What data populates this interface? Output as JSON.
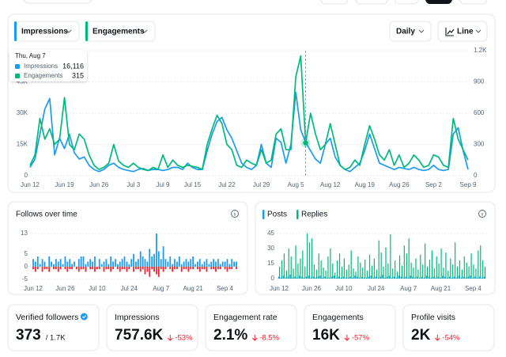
{
  "main_chart": {
    "type": "line",
    "categories": [
      "Jun 12",
      null,
      null,
      null,
      null,
      null,
      null,
      "Jun 19",
      null,
      null,
      null,
      null,
      null,
      null,
      "Jun 26",
      null,
      null,
      null,
      null,
      null,
      null,
      "Jul 3",
      null,
      null,
      null,
      null,
      null,
      "Jul 9",
      null,
      null,
      null,
      null,
      null,
      "Jul 15",
      null,
      null,
      null,
      null,
      null,
      null,
      "Jul 22",
      null,
      null,
      null,
      null,
      null,
      null,
      "Jul 29",
      null,
      null,
      null,
      null,
      null,
      null,
      "Aug 5",
      null,
      null,
      null,
      null,
      null,
      null,
      "Aug 12",
      null,
      null,
      null,
      null,
      null,
      null,
      "Aug 19",
      null,
      null,
      null,
      null,
      null,
      null,
      "Aug 26",
      null,
      null,
      null,
      null,
      null,
      null,
      "Sep 2",
      null,
      null,
      null,
      null,
      null,
      null,
      "Sep 9"
    ],
    "series": [
      {
        "name": "Impressions",
        "color": "#1d9bf0",
        "values": [
          4000,
          8000,
          20000,
          32000,
          37000,
          10000,
          18000,
          13000,
          20000,
          11000,
          8000,
          9000,
          5000,
          3000,
          2000,
          3000,
          5000,
          6000,
          4000,
          3000,
          2500,
          2000,
          3000,
          3500,
          2500,
          3000,
          3000,
          2500,
          3000,
          4000,
          4000,
          3000,
          6000,
          4000,
          3000,
          3000,
          12000,
          20000,
          26000,
          28000,
          22000,
          18000,
          12000,
          6000,
          4000,
          3000,
          5000,
          15000,
          6000,
          4000,
          18000,
          16000,
          6000,
          15000,
          40000,
          22000,
          16116,
          12000,
          8000,
          6000,
          15000,
          18000,
          9000,
          5000,
          3000,
          2000,
          4000,
          6000,
          12000,
          20000,
          13000,
          6000,
          5000,
          4000,
          3000,
          4000,
          3500,
          3000,
          4000,
          3000,
          2500,
          3000,
          5000,
          3000,
          2500,
          3000,
          20000,
          23000,
          12000,
          3000
        ]
      },
      {
        "name": "Engagements",
        "color": "#00ba7c",
        "axis": "y2",
        "values": [
          100,
          200,
          550,
          350,
          450,
          300,
          350,
          750,
          300,
          250,
          400,
          350,
          200,
          100,
          60,
          80,
          120,
          300,
          140,
          100,
          80,
          120,
          80,
          60,
          50,
          80,
          60,
          200,
          80,
          150,
          100,
          80,
          100,
          90,
          80,
          60,
          300,
          450,
          580,
          500,
          300,
          250,
          100,
          80,
          150,
          120,
          100,
          250,
          120,
          150,
          400,
          450,
          250,
          250,
          950,
          1150,
          315,
          600,
          400,
          250,
          300,
          500,
          300,
          100,
          60,
          80,
          150,
          100,
          300,
          480,
          350,
          200,
          150,
          250,
          100,
          200,
          80,
          120,
          200,
          150,
          80,
          100,
          200,
          180,
          100,
          80,
          550,
          350,
          250,
          150
        ]
      }
    ],
    "ylim": [
      0,
      60000
    ],
    "yticks": [
      0,
      {
        "value": 15000,
        "label": "15K"
      },
      {
        "value": 30000,
        "label": "30K"
      },
      {
        "value": 45000,
        "label": "45K"
      }
    ],
    "y2lim": [
      0,
      1200
    ],
    "y2ticks": [
      0,
      300,
      600,
      900,
      {
        "value": 1200,
        "label": "1.2K"
      }
    ],
    "grid": true,
    "tooltip": {
      "date": "Thu, Aug 7",
      "values": [
        "16,116",
        "315"
      ]
    }
  },
  "controls": {
    "interval": "Daily",
    "style": "Line"
  },
  "follows_chart": {
    "type": "bar",
    "title": "Follows over time",
    "categories": [
      "Jun 12",
      null,
      null,
      null,
      null,
      null,
      null,
      null,
      null,
      null,
      null,
      null,
      null,
      null,
      "Jun 26",
      null,
      null,
      null,
      null,
      null,
      null,
      null,
      null,
      null,
      null,
      null,
      null,
      null,
      "Jul 10",
      null,
      null,
      null,
      null,
      null,
      null,
      null,
      null,
      null,
      null,
      null,
      null,
      null,
      "Jul 24",
      null,
      null,
      null,
      null,
      null,
      null,
      null,
      null,
      null,
      null,
      null,
      null,
      null,
      "Aug 7",
      null,
      null,
      null,
      null,
      null,
      null,
      null,
      null,
      null,
      null,
      null,
      null,
      null,
      "Aug 21",
      null,
      null,
      null,
      null,
      null,
      null,
      null,
      null,
      null,
      null,
      null,
      null,
      null,
      "Sep 4",
      null,
      null,
      null,
      null,
      null
    ],
    "series": [
      {
        "color": "#1d9bf0",
        "values": [
          3,
          2,
          4,
          1,
          3,
          2,
          0,
          4,
          2,
          1,
          3,
          2,
          3,
          1,
          4,
          2,
          3,
          1,
          2,
          0,
          3,
          4,
          4,
          1,
          2,
          3,
          2,
          4,
          0,
          3,
          1,
          2,
          3,
          1,
          4,
          2,
          3,
          1,
          2,
          3,
          4,
          2,
          1,
          3,
          5,
          2,
          3,
          6,
          4,
          3,
          2,
          7,
          4,
          5,
          13,
          6,
          3,
          8,
          3,
          2,
          4,
          1,
          3,
          2,
          4,
          1,
          2,
          3,
          2,
          3,
          4,
          1,
          2,
          3,
          1,
          2,
          3,
          1,
          2,
          3,
          2,
          3,
          1,
          2,
          2,
          3,
          1,
          3,
          2,
          2
        ]
      },
      {
        "color": "#f4212e",
        "values": [
          -1,
          -2,
          -1,
          0,
          -2,
          -1,
          -1,
          -2,
          0,
          -1,
          -1,
          -2,
          -1,
          0,
          -1,
          -2,
          -1,
          -1,
          0,
          -1,
          -2,
          -1,
          -1,
          -2,
          0,
          -1,
          -1,
          -2,
          -1,
          -1,
          0,
          -2,
          -1,
          -1,
          -2,
          -1,
          0,
          -1,
          -2,
          -1,
          -1,
          -2,
          -1,
          0,
          -2,
          -1,
          -1,
          -2,
          -1,
          -3,
          -2,
          -4,
          -1,
          -2,
          -3,
          -4,
          -1,
          -2,
          -1,
          0,
          -1,
          -2,
          -1,
          -1,
          0,
          -2,
          -1,
          -1,
          -2,
          -1,
          -1,
          0,
          -1,
          -2,
          -1,
          -1,
          -2,
          0,
          -1,
          -1,
          -2,
          -1,
          -1,
          0,
          -1,
          -2,
          -1,
          -1,
          0,
          -1
        ]
      }
    ],
    "ylim": [
      -5,
      13
    ],
    "yticks": [
      -5,
      0,
      5,
      13
    ],
    "grid": true
  },
  "posts_chart": {
    "type": "bar",
    "categories": [
      "Jun 12",
      null,
      null,
      null,
      null,
      null,
      null,
      null,
      null,
      null,
      null,
      null,
      null,
      null,
      "Jun 26",
      null,
      null,
      null,
      null,
      null,
      null,
      null,
      null,
      null,
      null,
      null,
      null,
      null,
      "Jul 10",
      null,
      null,
      null,
      null,
      null,
      null,
      null,
      null,
      null,
      null,
      null,
      null,
      null,
      "Jul 24",
      null,
      null,
      null,
      null,
      null,
      null,
      null,
      null,
      null,
      null,
      null,
      null,
      null,
      "Aug 7",
      null,
      null,
      null,
      null,
      null,
      null,
      null,
      null,
      null,
      null,
      null,
      null,
      null,
      "Aug 21",
      null,
      null,
      null,
      null,
      null,
      null,
      null,
      null,
      null,
      null,
      null,
      null,
      null,
      "Sep 4",
      null,
      null,
      null,
      null,
      null
    ],
    "series": [
      {
        "name": "Posts",
        "color": "#1d9bf0",
        "values": [
          2,
          1,
          3,
          1,
          2,
          4,
          1,
          2,
          1,
          3,
          2,
          1,
          2,
          3,
          1,
          2,
          1,
          2,
          3,
          1,
          2,
          1,
          1,
          2,
          3,
          1,
          2,
          1,
          2,
          1,
          1,
          2,
          1,
          3,
          2,
          1,
          2,
          1,
          1,
          2,
          3,
          1,
          2,
          1,
          2,
          4,
          1,
          2,
          3,
          1,
          2,
          1,
          3,
          2,
          1,
          2,
          1,
          3,
          2,
          1,
          2,
          1,
          2,
          1,
          3,
          2,
          1,
          2,
          1,
          2,
          1,
          3,
          2,
          1,
          2,
          1,
          2,
          1,
          3,
          1,
          2,
          1,
          2,
          3,
          1,
          2,
          1,
          2,
          1,
          2
        ]
      },
      {
        "name": "Replies",
        "color": "#00ba7c",
        "values": [
          12,
          18,
          25,
          8,
          30,
          22,
          10,
          33,
          15,
          20,
          28,
          12,
          45,
          36,
          40,
          14,
          9,
          25,
          18,
          11,
          8,
          22,
          30,
          15,
          6,
          18,
          25,
          12,
          20,
          9,
          14,
          28,
          10,
          7,
          22,
          16,
          11,
          19,
          8,
          24,
          13,
          20,
          9,
          38,
          26,
          12,
          31,
          15,
          44,
          10,
          18,
          7,
          23,
          13,
          33,
          25,
          40,
          16,
          11,
          20,
          9,
          24,
          14,
          35,
          12,
          19,
          28,
          10,
          22,
          15,
          30,
          11,
          26,
          8,
          20,
          14,
          36,
          12,
          18,
          9,
          22,
          16,
          12,
          25,
          14,
          10,
          28,
          33,
          18,
          12
        ]
      }
    ],
    "ylim": [
      0,
      48
    ],
    "yticks": [
      0,
      15,
      30,
      45
    ],
    "grid": true
  },
  "cards": [
    {
      "label": "Verified followers",
      "value": "373",
      "suffix": "/ 1.7K"
    },
    {
      "label": "Impressions",
      "value": "757.6K",
      "change": "-53%"
    },
    {
      "label": "Engagement rate",
      "value": "2.1%",
      "change": "-8.5%"
    },
    {
      "label": "Engagements",
      "value": "16K",
      "change": "-57%"
    },
    {
      "label": "Profile visits",
      "value": "2K",
      "change": "-54%"
    }
  ]
}
